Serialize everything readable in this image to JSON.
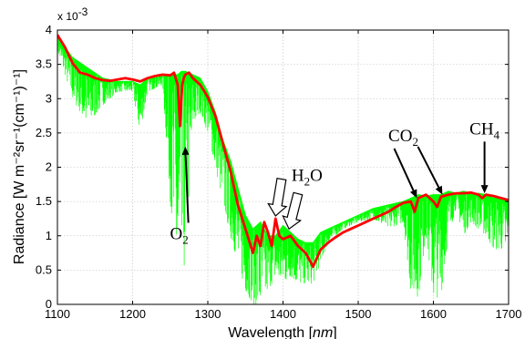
{
  "colors": {
    "measured": "#00ff00",
    "smoothed": "#ff0000"
  },
  "chart_data": {
    "type": "line",
    "xlabel_text": "Wavelength",
    "xlabel_unit": "nm",
    "ylabel": "Radiance [W m⁻²sr⁻¹(cm⁻¹)⁻¹]",
    "exponent_label": "x 10",
    "exponent_power": "-3",
    "xlim": [
      1100,
      1700
    ],
    "ylim": [
      0,
      4
    ],
    "x_ticks": [
      "1100",
      "1200",
      "1300",
      "1400",
      "1500",
      "1600",
      "1700"
    ],
    "y_ticks": [
      "0",
      "0.5",
      "1",
      "1.5",
      "2",
      "2.5",
      "3",
      "3.5",
      "4"
    ],
    "grid": true,
    "series": [
      {
        "style": "green thin lines (high-resolution spectrum)",
        "x": [
          1100,
          1120,
          1140,
          1160,
          1180,
          1200,
          1210,
          1220,
          1240,
          1250,
          1260,
          1265,
          1270,
          1280,
          1290,
          1300,
          1310,
          1320,
          1330,
          1340,
          1350,
          1360,
          1370,
          1380,
          1390,
          1400,
          1410,
          1420,
          1430,
          1440,
          1450,
          1460,
          1480,
          1500,
          1520,
          1540,
          1560,
          1570,
          1580,
          1590,
          1600,
          1610,
          1620,
          1630,
          1640,
          1650,
          1660,
          1670,
          1680,
          1690,
          1700
        ],
        "upper": [
          3.9,
          3.6,
          3.45,
          3.3,
          3.25,
          3.25,
          3.2,
          3.3,
          3.35,
          3.35,
          3.35,
          3.4,
          3.4,
          3.35,
          3.3,
          3.1,
          2.8,
          2.4,
          2.1,
          1.7,
          1.3,
          1.1,
          1.2,
          1.0,
          1.0,
          1.15,
          1.05,
          0.95,
          0.9,
          0.9,
          1.05,
          1.1,
          1.2,
          1.3,
          1.4,
          1.45,
          1.5,
          1.55,
          1.6,
          1.58,
          1.6,
          1.6,
          1.65,
          1.62,
          1.65,
          1.62,
          1.62,
          1.6,
          1.55,
          1.55,
          1.5
        ],
        "lower": [
          3.7,
          3.0,
          2.6,
          2.9,
          3.1,
          3.1,
          2.5,
          3.1,
          3.2,
          1.5,
          0.3,
          0.3,
          0.6,
          2.6,
          2.8,
          2.5,
          2.0,
          1.5,
          1.0,
          0.6,
          0.2,
          0.0,
          0.0,
          0.2,
          0.4,
          0.3,
          0.4,
          0.3,
          0.3,
          0.3,
          0.6,
          0.9,
          1.1,
          1.2,
          1.25,
          1.1,
          1.2,
          0.2,
          0.1,
          1.0,
          0.1,
          0.1,
          1.0,
          1.4,
          1.0,
          1.2,
          1.1,
          1.0,
          0.8,
          0.8,
          0.8
        ]
      },
      {
        "style": "red thick line (smoothed spectrum)",
        "x": [
          1100,
          1110,
          1120,
          1130,
          1140,
          1150,
          1160,
          1170,
          1180,
          1190,
          1200,
          1210,
          1220,
          1230,
          1240,
          1250,
          1255,
          1260,
          1263,
          1266,
          1268,
          1270,
          1275,
          1280,
          1290,
          1300,
          1310,
          1320,
          1330,
          1340,
          1350,
          1360,
          1365,
          1370,
          1375,
          1380,
          1385,
          1390,
          1395,
          1400,
          1410,
          1420,
          1430,
          1440,
          1450,
          1460,
          1470,
          1480,
          1490,
          1500,
          1510,
          1520,
          1530,
          1540,
          1550,
          1560,
          1570,
          1575,
          1580,
          1590,
          1600,
          1605,
          1610,
          1620,
          1630,
          1640,
          1650,
          1660,
          1665,
          1670,
          1680,
          1690,
          1700
        ],
        "values": [
          3.93,
          3.75,
          3.52,
          3.38,
          3.35,
          3.3,
          3.27,
          3.26,
          3.28,
          3.3,
          3.28,
          3.25,
          3.3,
          3.33,
          3.35,
          3.34,
          3.38,
          3.2,
          2.6,
          3.2,
          3.3,
          3.35,
          3.38,
          3.3,
          3.2,
          3.02,
          2.75,
          2.35,
          1.95,
          1.45,
          1.1,
          0.75,
          1.0,
          0.85,
          1.2,
          1.05,
          0.85,
          1.25,
          1.0,
          0.95,
          1.0,
          0.85,
          0.75,
          0.55,
          0.8,
          0.9,
          0.98,
          1.05,
          1.1,
          1.15,
          1.2,
          1.25,
          1.3,
          1.35,
          1.42,
          1.48,
          1.5,
          1.35,
          1.55,
          1.6,
          1.5,
          1.42,
          1.57,
          1.6,
          1.62,
          1.62,
          1.63,
          1.6,
          1.55,
          1.6,
          1.58,
          1.55,
          1.52
        ]
      }
    ],
    "annotations": [
      {
        "base": "O",
        "sub": "2",
        "x": 1262,
        "y": 0.95,
        "arrow_to": [
          1270,
          2.3
        ]
      },
      {
        "base": "H",
        "sub": "2",
        "tail": "O",
        "x": 1432,
        "y": 1.8,
        "arrows": [
          [
            1390,
            1.29
          ],
          [
            1408,
            1.1
          ]
        ]
      },
      {
        "base": "CO",
        "sub": "2",
        "x": 1560,
        "y": 2.38,
        "arrows": [
          [
            1578,
            1.55
          ],
          [
            1612,
            1.6
          ]
        ]
      },
      {
        "base": "CH",
        "sub": "4",
        "x": 1668,
        "y": 2.48,
        "arrow_to": [
          1668,
          1.62
        ]
      }
    ]
  }
}
